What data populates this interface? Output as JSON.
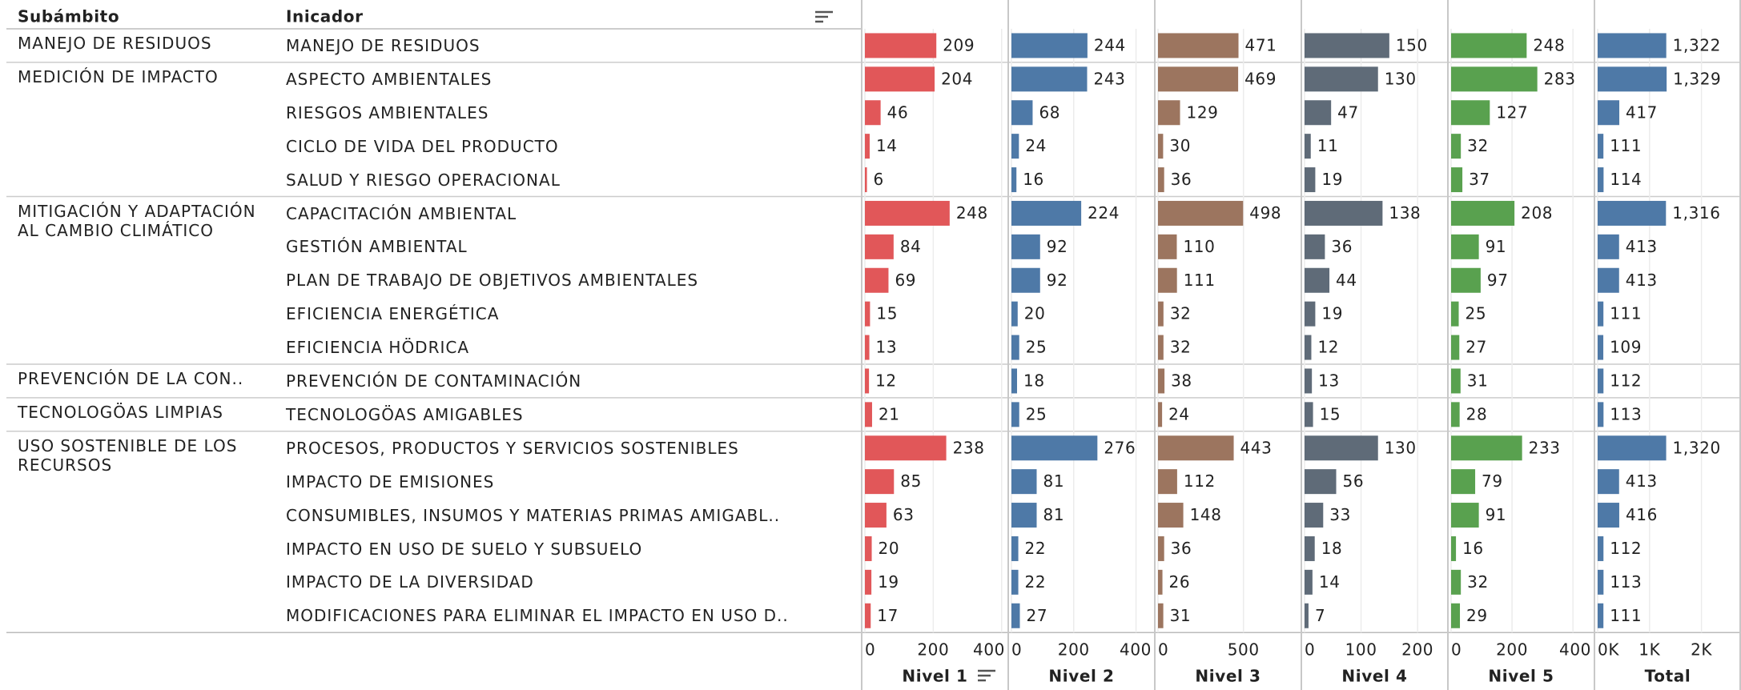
{
  "chart_data": {
    "type": "bar",
    "row_header": "Subámbito",
    "category_header": "Inicador",
    "groups": [
      "MANEJO DE RESIDUOS",
      "MEDICIÓN DE IMPACTO",
      null,
      null,
      null,
      "MITIGACIÓN Y ADAPTACIÓN AL CAMBIO CLIMÁTICO",
      null,
      null,
      null,
      null,
      "PREVENCIÓN DE LA CON..",
      "TECNOLOGÖAS LIMPIAS",
      "USO SOSTENIBLE DE LOS RECURSOS",
      null,
      null,
      null,
      null,
      null
    ],
    "categories": [
      "MANEJO DE RESIDUOS",
      "ASPECTO AMBIENTALES",
      "RIESGOS AMBIENTALES",
      "CICLO DE VIDA DEL PRODUCTO",
      "SALUD Y RIESGO OPERACIONAL",
      "CAPACITACIÓN AMBIENTAL",
      "GESTIÓN AMBIENTAL",
      "PLAN DE TRABAJO DE OBJETIVOS AMBIENTALES",
      "EFICIENCIA ENERGÉTICA",
      "EFICIENCIA HÖDRICA",
      "PREVENCIÓN DE CONTAMINACIÓN",
      "TECNOLOGÖAS AMIGABLES",
      "PROCESOS, PRODUCTOS Y SERVICIOS SOSTENIBLES",
      "IMPACTO DE EMISIONES",
      "CONSUMIBLES, INSUMOS Y MATERIAS PRIMAS AMIGABL..",
      "IMPACTO EN USO DE SUELO Y SUBSUELO",
      "IMPACTO DE LA DIVERSIDAD",
      "MODIFICACIONES PARA ELIMINAR EL IMPACTO EN USO D.."
    ],
    "series": [
      {
        "name": "Nivel 1",
        "color": "#e15759",
        "xlim": [
          0,
          410
        ],
        "xticks": [
          0,
          200,
          400
        ],
        "values": [
          209,
          204,
          46,
          14,
          6,
          248,
          84,
          69,
          15,
          13,
          12,
          21,
          238,
          85,
          63,
          20,
          19,
          17
        ]
      },
      {
        "name": "Nivel 2",
        "color": "#4e79a7",
        "xlim": [
          0,
          450
        ],
        "xticks": [
          0,
          200,
          400
        ],
        "values": [
          244,
          243,
          68,
          24,
          16,
          224,
          92,
          92,
          20,
          25,
          18,
          25,
          276,
          81,
          81,
          22,
          22,
          27
        ]
      },
      {
        "name": "Nivel 3",
        "color": "#9c755f",
        "xlim": [
          0,
          820
        ],
        "xticks": [
          0,
          500
        ],
        "values": [
          471,
          469,
          129,
          30,
          36,
          498,
          110,
          111,
          32,
          32,
          38,
          24,
          443,
          112,
          148,
          36,
          26,
          31
        ]
      },
      {
        "name": "Nivel 4",
        "color": "#5f6b78",
        "xlim": [
          0,
          248
        ],
        "xticks": [
          0,
          100,
          200
        ],
        "values": [
          150,
          130,
          47,
          11,
          19,
          138,
          36,
          44,
          19,
          12,
          13,
          15,
          130,
          56,
          33,
          18,
          14,
          7
        ]
      },
      {
        "name": "Nivel 5",
        "color": "#59a14f",
        "xlim": [
          0,
          460
        ],
        "xticks": [
          0,
          200,
          400
        ],
        "values": [
          248,
          283,
          127,
          32,
          37,
          208,
          91,
          97,
          25,
          27,
          31,
          28,
          233,
          79,
          91,
          16,
          32,
          29
        ]
      },
      {
        "name": "Total",
        "color": "#4e79a7",
        "xlim": [
          0,
          2700
        ],
        "xticks": [
          {
            "value": 0,
            "label": "0K"
          },
          {
            "value": 1000,
            "label": "1K"
          },
          {
            "value": 2000,
            "label": "2K"
          }
        ],
        "values": [
          1322,
          1329,
          417,
          111,
          114,
          1316,
          413,
          413,
          111,
          109,
          112,
          113,
          1320,
          413,
          416,
          112,
          113,
          111
        ],
        "value_labels": [
          "1,322",
          "1,329",
          "417",
          "111",
          "114",
          "1,316",
          "413",
          "413",
          "111",
          "109",
          "112",
          "113",
          "1,320",
          "413",
          "416",
          "112",
          "113",
          "111"
        ]
      }
    ]
  }
}
